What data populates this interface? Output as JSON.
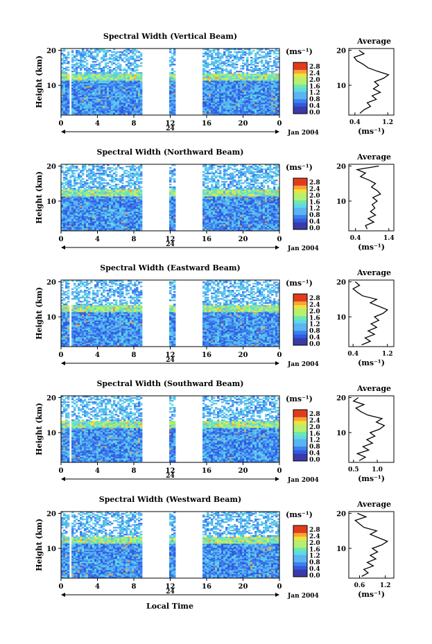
{
  "figure": {
    "time_axis_label": "Local Time",
    "date_label": "Jan 2004",
    "day_marker": "24",
    "height_axis_label": "Height (km)",
    "colorbar_unit": "(ms⁻¹)",
    "colorbar_ticks": [
      "0.0",
      "0.4",
      "0.8",
      "1.2",
      "1.6",
      "2.0",
      "2.4",
      "2.8"
    ],
    "average_title": "Average",
    "average_unit": "(ms⁻¹)",
    "colors": {
      "white": "#ffffff",
      "blue": "#2f5ce0",
      "cyan": "#59b5f0",
      "yellow": "#f2e23a",
      "red": "#e23b1c"
    }
  },
  "chart_data": [
    {
      "type": "heatmap",
      "title": "Spectral Width (Vertical Beam)",
      "xlabel": "Local Time",
      "ylabel": "Height (km)",
      "x_ticks": [
        "0",
        "4",
        "8",
        "12",
        "16",
        "20",
        "0"
      ],
      "y_ticks": [
        "20",
        "10"
      ],
      "xlim": [
        0,
        24
      ],
      "ylim": [
        1.5,
        20.5
      ],
      "colorbar": {
        "label": "(ms⁻¹)",
        "range": [
          0.0,
          2.8
        ]
      },
      "data_gaps_hours": [
        [
          1.0,
          1.2
        ],
        [
          9.0,
          12.0
        ],
        [
          12.5,
          15.5
        ]
      ],
      "average_profile": {
        "title": "Average",
        "xlabel": "(ms⁻¹)",
        "x_ticks": [
          "0.4",
          "1.2"
        ],
        "xlim": [
          0.25,
          1.35
        ],
        "ylim": [
          1.5,
          20.5
        ],
        "y_ticks": [
          "20",
          "10"
        ],
        "points": [
          [
            0.52,
            2
          ],
          [
            0.62,
            3
          ],
          [
            0.78,
            4
          ],
          [
            0.7,
            5
          ],
          [
            0.92,
            6
          ],
          [
            0.82,
            7
          ],
          [
            1.02,
            8
          ],
          [
            0.85,
            9
          ],
          [
            0.98,
            10
          ],
          [
            0.88,
            11
          ],
          [
            1.1,
            12
          ],
          [
            1.22,
            13
          ],
          [
            0.95,
            14
          ],
          [
            0.72,
            15
          ],
          [
            0.6,
            16
          ],
          [
            0.45,
            17
          ],
          [
            0.38,
            18
          ],
          [
            0.62,
            19
          ],
          [
            0.5,
            20
          ]
        ]
      }
    },
    {
      "type": "heatmap",
      "title": "Spectral Width (Northward Beam)",
      "xlabel": "Local Time",
      "ylabel": "Height (km)",
      "x_ticks": [
        "0",
        "4",
        "8",
        "12",
        "16",
        "20",
        "0"
      ],
      "y_ticks": [
        "20",
        "10"
      ],
      "xlim": [
        0,
        24
      ],
      "ylim": [
        1.5,
        20.5
      ],
      "colorbar": {
        "label": "(ms⁻¹)",
        "range": [
          0.0,
          2.8
        ]
      },
      "data_gaps_hours": [
        [
          9.0,
          12.0
        ],
        [
          12.5,
          15.5
        ]
      ],
      "average_profile": {
        "title": "Average",
        "xlabel": "(ms⁻¹)",
        "x_ticks": [
          "0.4",
          "1.4"
        ],
        "xlim": [
          0.2,
          1.55
        ],
        "ylim": [
          1.5,
          20.5
        ],
        "y_ticks": [
          "20",
          "10"
        ],
        "points": [
          [
            0.75,
            2
          ],
          [
            0.7,
            3
          ],
          [
            0.95,
            4
          ],
          [
            0.78,
            5
          ],
          [
            1.0,
            6
          ],
          [
            0.85,
            7
          ],
          [
            0.98,
            8
          ],
          [
            0.9,
            9
          ],
          [
            1.05,
            10
          ],
          [
            0.92,
            11
          ],
          [
            1.15,
            12
          ],
          [
            1.05,
            13
          ],
          [
            0.88,
            14
          ],
          [
            1.0,
            15
          ],
          [
            0.8,
            16
          ],
          [
            0.55,
            17
          ],
          [
            0.7,
            18
          ],
          [
            0.45,
            19
          ],
          [
            1.1,
            20
          ]
        ]
      }
    },
    {
      "type": "heatmap",
      "title": "Spectral Width (Eastward Beam)",
      "xlabel": "Local Time",
      "ylabel": "Height (km)",
      "x_ticks": [
        "0",
        "4",
        "8",
        "12",
        "16",
        "20",
        "0"
      ],
      "y_ticks": [
        "20",
        "10"
      ],
      "xlim": [
        0,
        24
      ],
      "ylim": [
        1.5,
        20.5
      ],
      "colorbar": {
        "label": "(ms⁻¹)",
        "range": [
          0.0,
          2.8
        ]
      },
      "data_gaps_hours": [
        [
          1.0,
          1.2
        ],
        [
          9.0,
          12.0
        ],
        [
          12.5,
          15.5
        ]
      ],
      "average_profile": {
        "title": "Average",
        "xlabel": "(ms⁻¹)",
        "x_ticks": [
          "0.4",
          "1.2"
        ],
        "xlim": [
          0.3,
          1.35
        ],
        "ylim": [
          1.5,
          20.5
        ],
        "y_ticks": [
          "20",
          "10"
        ],
        "points": [
          [
            0.6,
            2
          ],
          [
            0.8,
            3
          ],
          [
            0.68,
            4
          ],
          [
            0.9,
            5
          ],
          [
            0.75,
            6
          ],
          [
            0.95,
            7
          ],
          [
            0.82,
            8
          ],
          [
            1.0,
            9
          ],
          [
            0.9,
            10
          ],
          [
            1.1,
            11
          ],
          [
            1.2,
            12
          ],
          [
            1.0,
            13
          ],
          [
            0.8,
            14
          ],
          [
            0.95,
            15
          ],
          [
            0.62,
            16
          ],
          [
            0.5,
            17
          ],
          [
            0.4,
            18
          ],
          [
            0.55,
            19
          ],
          [
            0.45,
            20
          ]
        ]
      }
    },
    {
      "type": "heatmap",
      "title": "Spectral Width (Southward Beam)",
      "xlabel": "Local Time",
      "ylabel": "Height (km)",
      "x_ticks": [
        "0",
        "4",
        "8",
        "12",
        "16",
        "20",
        "0"
      ],
      "y_ticks": [
        "20",
        "10"
      ],
      "xlim": [
        0,
        24
      ],
      "ylim": [
        1.5,
        20.5
      ],
      "colorbar": {
        "label": "(ms⁻¹)",
        "range": [
          0.0,
          2.8
        ]
      },
      "data_gaps_hours": [
        [
          1.0,
          1.2
        ],
        [
          9.0,
          12.0
        ],
        [
          12.5,
          15.5
        ]
      ],
      "average_profile": {
        "title": "Average",
        "xlabel": "(ms⁻¹)",
        "x_ticks": [
          "0.5",
          "1.0"
        ],
        "xlim": [
          0.4,
          1.35
        ],
        "ylim": [
          1.5,
          20.5
        ],
        "y_ticks": [
          "20",
          "10"
        ],
        "points": [
          [
            0.62,
            2
          ],
          [
            0.75,
            3
          ],
          [
            0.58,
            4
          ],
          [
            0.82,
            5
          ],
          [
            0.7,
            6
          ],
          [
            0.9,
            7
          ],
          [
            0.78,
            8
          ],
          [
            0.95,
            9
          ],
          [
            0.85,
            10
          ],
          [
            1.05,
            11
          ],
          [
            1.15,
            12
          ],
          [
            0.98,
            13
          ],
          [
            1.1,
            14
          ],
          [
            0.8,
            15
          ],
          [
            0.65,
            16
          ],
          [
            0.55,
            17
          ],
          [
            0.72,
            18
          ],
          [
            0.5,
            19
          ],
          [
            0.6,
            20
          ]
        ]
      }
    },
    {
      "type": "heatmap",
      "title": "Spectral Width (Westward Beam)",
      "xlabel": "Local Time",
      "ylabel": "Height (km)",
      "x_ticks": [
        "0",
        "4",
        "8",
        "12",
        "16",
        "20",
        "0"
      ],
      "y_ticks": [
        "20",
        "10"
      ],
      "xlim": [
        0,
        24
      ],
      "ylim": [
        1.5,
        20.5
      ],
      "colorbar": {
        "label": "(ms⁻¹)",
        "range": [
          0.0,
          2.8
        ]
      },
      "data_gaps_hours": [
        [
          1.0,
          1.2
        ],
        [
          9.0,
          12.0
        ],
        [
          12.5,
          15.5
        ]
      ],
      "average_profile": {
        "title": "Average",
        "xlabel": "(ms⁻¹)",
        "x_ticks": [
          "0.6",
          "1.2"
        ],
        "xlim": [
          0.35,
          1.4
        ],
        "ylim": [
          1.5,
          20.5
        ],
        "y_ticks": [
          "20",
          "10"
        ],
        "points": [
          [
            0.65,
            2
          ],
          [
            0.8,
            3
          ],
          [
            0.7,
            4
          ],
          [
            0.92,
            5
          ],
          [
            0.78,
            6
          ],
          [
            0.98,
            7
          ],
          [
            0.85,
            8
          ],
          [
            1.02,
            9
          ],
          [
            0.9,
            10
          ],
          [
            1.12,
            11
          ],
          [
            1.25,
            12
          ],
          [
            1.05,
            13
          ],
          [
            0.85,
            14
          ],
          [
            1.0,
            15
          ],
          [
            0.7,
            16
          ],
          [
            0.6,
            17
          ],
          [
            0.5,
            18
          ],
          [
            0.75,
            19
          ],
          [
            0.55,
            20
          ]
        ]
      }
    }
  ]
}
